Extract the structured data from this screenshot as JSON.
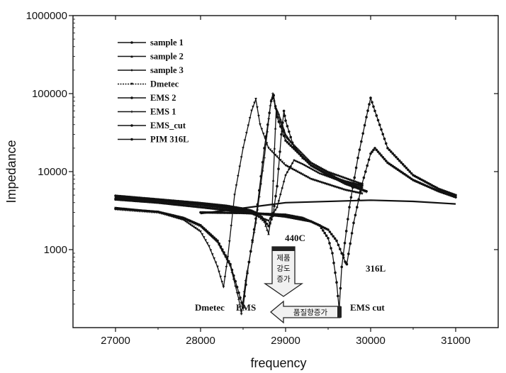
{
  "chart_data": {
    "type": "line",
    "xlabel": "frequency",
    "ylabel": "Impedance",
    "xlim": [
      26500,
      31500
    ],
    "ylim": [
      100,
      1000000
    ],
    "yscale": "log",
    "xticks": [
      "27000",
      "28000",
      "29000",
      "30000",
      "31000"
    ],
    "yticks": [
      "1000",
      "10000",
      "100000",
      "1000000"
    ],
    "legend_position": "top-left",
    "series": [
      {
        "name": "sample 1",
        "marker": "circle",
        "points": [
          [
            27000,
            4900
          ],
          [
            27500,
            4400
          ],
          [
            28000,
            3950
          ],
          [
            28300,
            3650
          ],
          [
            28500,
            3350
          ],
          [
            28600,
            3150
          ],
          [
            28700,
            2800
          ],
          [
            28800,
            2000
          ],
          [
            28850,
            2700
          ],
          [
            28900,
            6500
          ],
          [
            28950,
            30000
          ],
          [
            28980,
            60000
          ],
          [
            29000,
            45000
          ],
          [
            29100,
            20000
          ],
          [
            29300,
            12000
          ],
          [
            29500,
            9000
          ],
          [
            29700,
            7500
          ],
          [
            29900,
            6600
          ]
        ]
      },
      {
        "name": "sample 2",
        "marker": "triangle",
        "points": [
          [
            27000,
            4700
          ],
          [
            27500,
            4300
          ],
          [
            28000,
            3800
          ],
          [
            28300,
            3500
          ],
          [
            28500,
            3200
          ],
          [
            28650,
            2900
          ],
          [
            28750,
            2300
          ],
          [
            28800,
            1600
          ],
          [
            28840,
            3000
          ],
          [
            28870,
            20000
          ],
          [
            28890,
            65000
          ],
          [
            28920,
            55000
          ],
          [
            29000,
            30000
          ],
          [
            29200,
            15000
          ],
          [
            29500,
            10000
          ],
          [
            29900,
            7000
          ]
        ]
      },
      {
        "name": "sample 3",
        "marker": "diamond",
        "points": [
          [
            27000,
            4600
          ],
          [
            27500,
            4200
          ],
          [
            28000,
            3700
          ],
          [
            28400,
            3300
          ],
          [
            28600,
            2900
          ],
          [
            28800,
            2350
          ],
          [
            28900,
            3500
          ],
          [
            29000,
            9000
          ],
          [
            29100,
            14000
          ],
          [
            29200,
            12500
          ],
          [
            29400,
            9500
          ],
          [
            29700,
            7200
          ],
          [
            29900,
            6200
          ]
        ]
      },
      {
        "name": "Dmetec",
        "marker": "triangle-down",
        "points": [
          [
            27000,
            3400
          ],
          [
            27500,
            3000
          ],
          [
            27800,
            2400
          ],
          [
            28000,
            1700
          ],
          [
            28100,
            1100
          ],
          [
            28200,
            600
          ],
          [
            28270,
            330
          ],
          [
            28320,
            800
          ],
          [
            28400,
            5000
          ],
          [
            28500,
            20000
          ],
          [
            28600,
            60000
          ],
          [
            28650,
            85000
          ],
          [
            28700,
            40000
          ],
          [
            28800,
            20000
          ],
          [
            29000,
            12000
          ],
          [
            29300,
            8000
          ],
          [
            29700,
            5800
          ],
          [
            29900,
            5200
          ]
        ]
      },
      {
        "name": "EMS 2",
        "marker": "circle",
        "points": [
          [
            27000,
            3350
          ],
          [
            27500,
            3050
          ],
          [
            27800,
            2550
          ],
          [
            28000,
            2050
          ],
          [
            28200,
            1300
          ],
          [
            28350,
            650
          ],
          [
            28450,
            280
          ],
          [
            28500,
            180
          ],
          [
            28550,
            500
          ],
          [
            28650,
            2500
          ],
          [
            28750,
            20000
          ],
          [
            28830,
            80000
          ],
          [
            28860,
            95000
          ],
          [
            28900,
            50000
          ],
          [
            29000,
            25000
          ],
          [
            29300,
            12000
          ],
          [
            29700,
            7000
          ],
          [
            29950,
            5600
          ]
        ]
      },
      {
        "name": "EMS 1",
        "marker": "plus",
        "points": [
          [
            27000,
            3300
          ],
          [
            27500,
            3000
          ],
          [
            27800,
            2500
          ],
          [
            28000,
            2000
          ],
          [
            28200,
            1250
          ],
          [
            28350,
            620
          ],
          [
            28450,
            230
          ],
          [
            28480,
            150
          ],
          [
            28530,
            400
          ],
          [
            28650,
            2200
          ],
          [
            28750,
            15000
          ],
          [
            28820,
            70000
          ],
          [
            28850,
            100000
          ],
          [
            28880,
            65000
          ],
          [
            29000,
            28000
          ],
          [
            29300,
            13000
          ],
          [
            29700,
            7200
          ],
          [
            29950,
            5500
          ]
        ]
      },
      {
        "name": "EMS_cut",
        "marker": "star",
        "points": [
          [
            28000,
            3000
          ],
          [
            28500,
            2950
          ],
          [
            29000,
            2800
          ],
          [
            29200,
            2550
          ],
          [
            29400,
            2050
          ],
          [
            29500,
            1400
          ],
          [
            29550,
            900
          ],
          [
            29600,
            380
          ],
          [
            29630,
            170
          ],
          [
            29660,
            600
          ],
          [
            29750,
            3500
          ],
          [
            29850,
            15000
          ],
          [
            29950,
            50000
          ],
          [
            30000,
            88000
          ],
          [
            30050,
            60000
          ],
          [
            30200,
            20000
          ],
          [
            30500,
            9000
          ],
          [
            30800,
            6000
          ],
          [
            31000,
            5000
          ]
        ]
      },
      {
        "name": "PIM 316L",
        "marker": "circle",
        "points": [
          [
            27000,
            4400
          ],
          [
            27500,
            4000
          ],
          [
            28000,
            3500
          ],
          [
            28500,
            3050
          ],
          [
            29000,
            2650
          ],
          [
            29300,
            2300
          ],
          [
            29500,
            1800
          ],
          [
            29600,
            1300
          ],
          [
            29700,
            700
          ],
          [
            29720,
            650
          ],
          [
            29800,
            2200
          ],
          [
            29900,
            7000
          ],
          [
            30000,
            17000
          ],
          [
            30050,
            20000
          ],
          [
            30200,
            13000
          ],
          [
            30500,
            7800
          ],
          [
            30800,
            5600
          ],
          [
            31000,
            4700
          ]
        ]
      },
      {
        "name": "",
        "marker": "none",
        "points": [
          [
            28000,
            2900
          ],
          [
            29000,
            4000
          ],
          [
            30000,
            4300
          ],
          [
            30500,
            4150
          ],
          [
            31000,
            3850
          ]
        ]
      }
    ],
    "annotations": [
      "440C",
      "316L",
      "Dmetec",
      "EMS",
      "EMS cut"
    ],
    "arrow_down_text": [
      "제품",
      "강도",
      "증가"
    ],
    "arrow_left_text": "품질향증가"
  }
}
